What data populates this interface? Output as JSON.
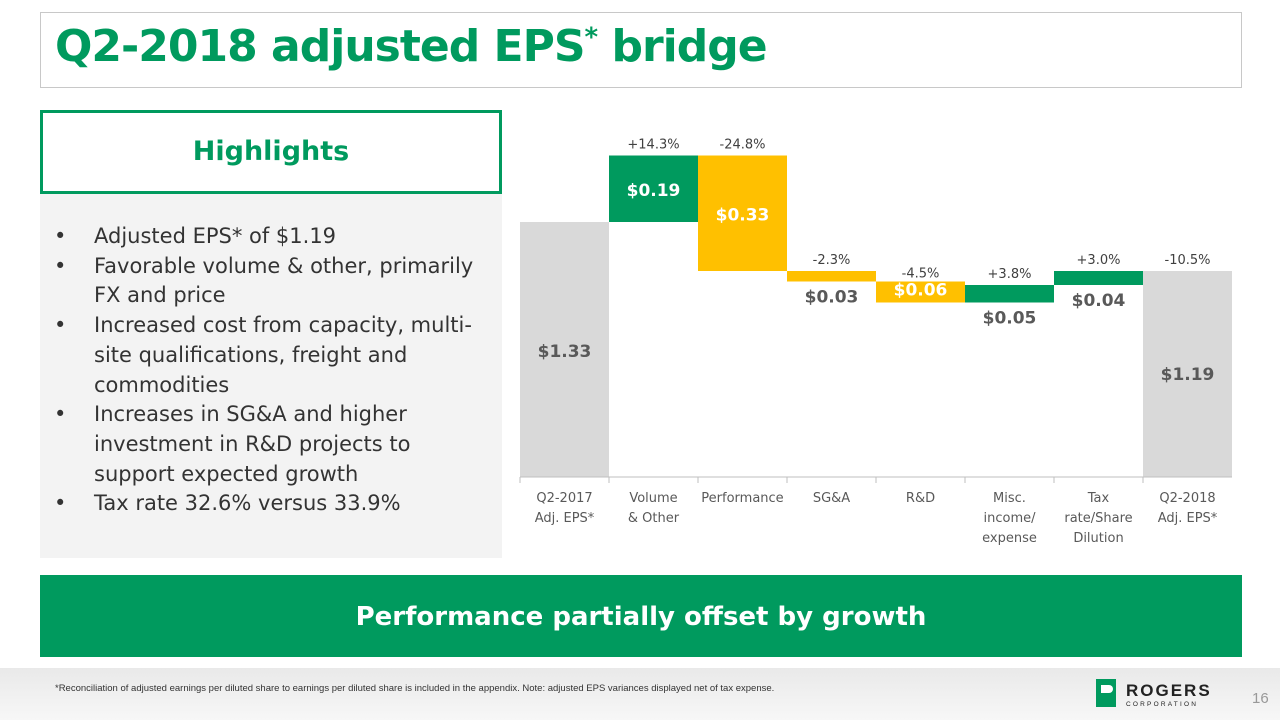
{
  "title": {
    "text": "Q2-2018 adjusted EPS",
    "sup": "*",
    "suffix": " bridge"
  },
  "highlights": {
    "heading": "Highlights",
    "items": [
      "Adjusted EPS* of $1.19",
      "Favorable volume & other, primarily FX and price",
      "Increased cost from capacity, multi-site qualifications, freight and commodities",
      "Increases in SG&A and higher investment in R&D projects to support expected growth",
      "Tax rate 32.6% versus 33.9%"
    ]
  },
  "banner": "Performance partially offset by growth",
  "footnote": "*Reconciliation of adjusted earnings per diluted share to earnings per diluted share is included in the appendix. Note: adjusted EPS variances displayed net of tax expense.",
  "page_number": "16",
  "logo": {
    "name": "ROGERS",
    "sub": "CORPORATION"
  },
  "colors": {
    "brand_green": "#009a5e",
    "decrease": "#ffc000",
    "total": "#d9d9d9"
  },
  "chart_data": {
    "type": "waterfall",
    "categories": [
      [
        "Q2-2017",
        "Adj. EPS*"
      ],
      [
        "Volume",
        "& Other"
      ],
      [
        "Performance"
      ],
      [
        "SG&A"
      ],
      [
        "R&D"
      ],
      [
        "Misc.",
        "income/",
        "expense"
      ],
      [
        "Tax",
        "rate/Share",
        "Dilution"
      ],
      [
        "Q2-2018",
        "Adj. EPS*"
      ]
    ],
    "values": [
      1.33,
      0.19,
      -0.33,
      -0.03,
      -0.06,
      0.05,
      0.04,
      1.19
    ],
    "kinds": [
      "total",
      "increase",
      "decrease",
      "decrease",
      "decrease",
      "increase",
      "increase",
      "total"
    ],
    "value_labels": [
      "$1.33",
      "$0.19",
      "$0.33",
      "$0.03",
      "$0.06",
      "$0.05",
      "$0.04",
      "$1.19"
    ],
    "pct_labels": [
      "",
      "+14.3%",
      "-24.8%",
      "-2.3%",
      "-4.5%",
      "+3.8%",
      "+3.0%",
      "-10.5%"
    ],
    "grid": false,
    "legend": "none"
  }
}
